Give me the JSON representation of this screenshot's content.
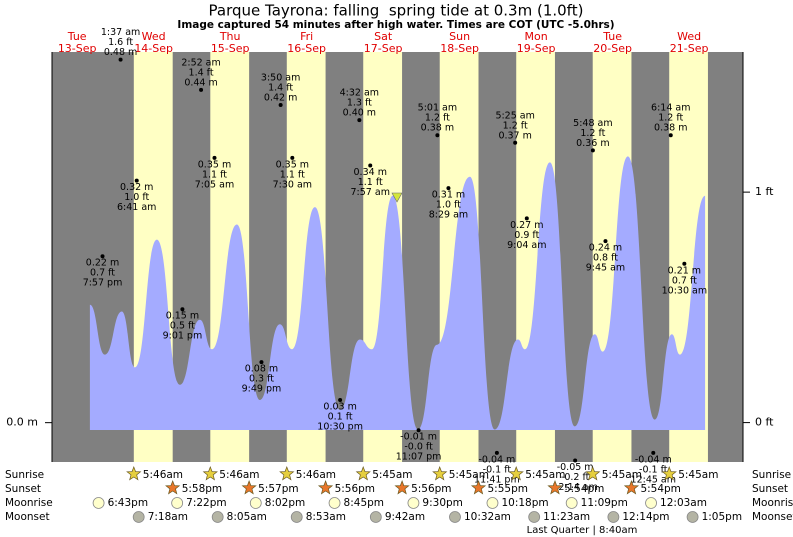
{
  "chart_data": {
    "type": "tide",
    "title": "Parque Tayrona: falling  spring tide at 0.3m (1.0ft)",
    "subtitle": "Image captured 54 minutes after high water. Times are COT (UTC -5.0hrs)",
    "xlim": [
      4.1,
      220.9
    ],
    "ylim": [
      -0.052,
      0.49
    ],
    "yticks": [
      {
        "value": 0,
        "label": "0.0 m"
      }
    ],
    "y2lim": [
      -0.171,
      1.608
    ],
    "y2ticks": [
      {
        "value": 0,
        "label": "0 ft"
      },
      {
        "value": 1,
        "label": "1 ft"
      }
    ],
    "colors": {
      "night": "#808080",
      "day": "#ffffc4",
      "water": "#a4abff",
      "sunrise": "#e6cf3e",
      "sunset": "#e8762a",
      "moonrise": "#ffffcc",
      "moonset": "#b4b4a4",
      "date": "#e00000"
    },
    "row_labels": [
      "Sunrise",
      "Sunset",
      "Moonrise",
      "Moonset"
    ],
    "moon_phase": "Last Quarter | 8:40am",
    "curve": {
      "x": [
        16.0,
        20.7,
        26.0,
        30.1,
        37.0,
        44.2,
        50.5,
        54.3,
        62.1,
        69.3,
        75.6,
        79.4,
        86.6,
        94.4,
        100.7,
        104.5,
        111.0,
        118.9,
        124.9,
        135.2,
        143.0,
        150.3,
        152.5,
        160.3,
        168.1,
        174.4,
        176.9,
        184.8,
        193.2,
        198.6,
        201.1,
        209.0
      ],
      "y": [
        0.156,
        0.09,
        0.147,
        0.073,
        0.242,
        0.05,
        0.136,
        0.097,
        0.262,
        0.03,
        0.13,
        0.097,
        0.285,
        0.017,
        0.11,
        0.097,
        0.3,
        -0.009,
        0.103,
        0.325,
        -0.009,
        0.11,
        0.097,
        0.344,
        -0.005,
        0.117,
        0.094,
        0.352,
        0.004,
        0.117,
        0.09,
        0.3
      ]
    },
    "days": [
      {
        "dow": "Tue",
        "date": "13-Sep",
        "sunrise": null,
        "sunset": null,
        "moonrise": "6:43pm",
        "moonset": null,
        "tides": [
          {
            "time": "7:57 pm",
            "m": 0.22,
            "m_label": "0.22 m",
            "ft": "0.7 ft"
          }
        ]
      },
      {
        "dow": "Wed",
        "date": "14-Sep",
        "sunrise": "5:46am",
        "sunset": "5:58pm",
        "moonrise": "7:22pm",
        "moonset": "7:18am",
        "tides": [
          {
            "time": "1:37 am",
            "m": 0.48,
            "m_label": "0.48 m",
            "ft": "1.6 ft"
          },
          {
            "time": "6:41 am",
            "m": 0.32,
            "m_label": "0.32 m",
            "ft": "1.0 ft"
          },
          {
            "time": "9:01 pm",
            "m": 0.15,
            "m_label": "0.15 m",
            "ft": "0.5 ft"
          }
        ]
      },
      {
        "dow": "Thu",
        "date": "15-Sep",
        "sunrise": "5:46am",
        "sunset": "5:57pm",
        "moonrise": "8:02pm",
        "moonset": "8:05am",
        "tides": [
          {
            "time": "2:52 am",
            "m": 0.44,
            "m_label": "0.44 m",
            "ft": "1.4 ft"
          },
          {
            "time": "7:05 am",
            "m": 0.35,
            "m_label": "0.35 m",
            "ft": "1.1 ft"
          },
          {
            "time": "9:49 pm",
            "m": 0.08,
            "m_label": "0.08 m",
            "ft": "0.3 ft"
          }
        ]
      },
      {
        "dow": "Fri",
        "date": "16-Sep",
        "sunrise": "5:46am",
        "sunset": "5:56pm",
        "moonrise": "8:45pm",
        "moonset": "8:53am",
        "tides": [
          {
            "time": "3:50 am",
            "m": 0.42,
            "m_label": "0.42 m",
            "ft": "1.4 ft"
          },
          {
            "time": "7:30 am",
            "m": 0.35,
            "m_label": "0.35 m",
            "ft": "1.1 ft"
          },
          {
            "time": "10:30 pm",
            "m": 0.03,
            "m_label": "0.03 m",
            "ft": "0.1 ft"
          }
        ]
      },
      {
        "dow": "Sat",
        "date": "17-Sep",
        "sunrise": "5:45am",
        "sunset": "5:56pm",
        "moonrise": "9:30pm",
        "moonset": "9:42am",
        "tides": [
          {
            "time": "4:32 am",
            "m": 0.4,
            "m_label": "0.40 m",
            "ft": "1.3 ft"
          },
          {
            "time": "7:57 am",
            "m": 0.34,
            "m_label": "0.34 m",
            "ft": "1.1 ft"
          },
          {
            "time": "11:07 pm",
            "m": -0.01,
            "m_label": "-0.01 m",
            "ft": "-0.0 ft"
          }
        ]
      },
      {
        "dow": "Sun",
        "date": "18-Sep",
        "sunrise": "5:45am",
        "sunset": "5:55pm",
        "moonrise": "10:18pm",
        "moonset": "10:32am",
        "tides": [
          {
            "time": "5:01 am",
            "m": 0.38,
            "m_label": "0.38 m",
            "ft": "1.2 ft"
          },
          {
            "time": "8:29 am",
            "m": 0.31,
            "m_label": "0.31 m",
            "ft": "1.0 ft"
          },
          {
            "time": "11:41 pm",
            "m": -0.04,
            "m_label": "-0.04 m",
            "ft": "-0.1 ft"
          }
        ]
      },
      {
        "dow": "Mon",
        "date": "19-Sep",
        "sunrise": "5:45am",
        "sunset": "5:54pm",
        "moonrise": "11:09pm",
        "moonset": "11:23am",
        "tides": [
          {
            "time": "5:25 am",
            "m": 0.37,
            "m_label": "0.37 m",
            "ft": "1.2 ft"
          },
          {
            "time": "9:04 am",
            "m": 0.27,
            "m_label": "0.27 m",
            "ft": "0.9 ft"
          }
        ]
      },
      {
        "dow": "Tue",
        "date": "20-Sep",
        "sunrise": "5:45am",
        "sunset": "5:54pm",
        "moonrise": null,
        "moonset": "12:14pm",
        "tides": [
          {
            "time": "12:14 am",
            "m": -0.05,
            "m_label": "-0.05 m",
            "ft": "-0.2 ft"
          },
          {
            "time": "5:48 am",
            "m": 0.36,
            "m_label": "0.36 m",
            "ft": "1.2 ft"
          },
          {
            "time": "9:45 am",
            "m": 0.24,
            "m_label": "0.24 m",
            "ft": "0.8 ft"
          }
        ]
      },
      {
        "dow": "Wed",
        "date": "21-Sep",
        "sunrise": "5:45am",
        "sunset": null,
        "moonrise": "12:03am",
        "moonset": "1:05pm",
        "tides": [
          {
            "time": "12:45 am",
            "m": -0.04,
            "m_label": "-0.04 m",
            "ft": "-0.1 ft"
          },
          {
            "time": "6:14 am",
            "m": 0.38,
            "m_label": "0.38 m",
            "ft": "1.2 ft"
          },
          {
            "time": "10:30 am",
            "m": 0.21,
            "m_label": "0.21 m",
            "ft": "0.7 ft"
          }
        ]
      }
    ]
  }
}
